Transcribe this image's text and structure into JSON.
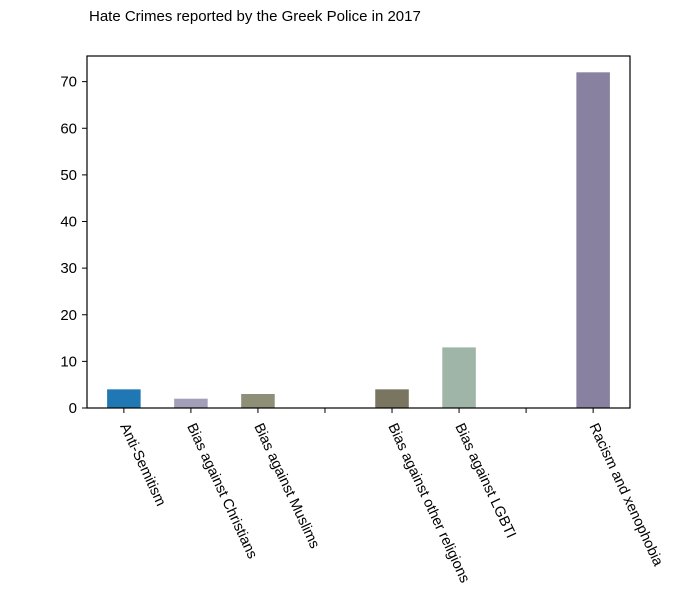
{
  "chart_data": {
    "type": "bar",
    "title": "Hate Crimes reported by the Greek Police in 2017",
    "xlabel": "",
    "ylabel": "",
    "ylim": [
      0,
      75.5
    ],
    "yticks": [
      0,
      10,
      20,
      30,
      40,
      50,
      60,
      70
    ],
    "grid": false,
    "legend": "none",
    "categories": [
      "Anti-Semitism",
      "Bias against Christians",
      "Bias against Muslims",
      "",
      "Bias against other religions",
      "Bias against LGBTI",
      "",
      "Racism and xenophobia"
    ],
    "values": [
      4,
      2,
      3,
      null,
      4,
      13,
      null,
      72
    ],
    "colors": [
      "#1f77b4",
      "#a39fb8",
      "#8f8e76",
      "",
      "#7a7560",
      "#9eb5a7",
      "",
      "#8881a0"
    ]
  }
}
